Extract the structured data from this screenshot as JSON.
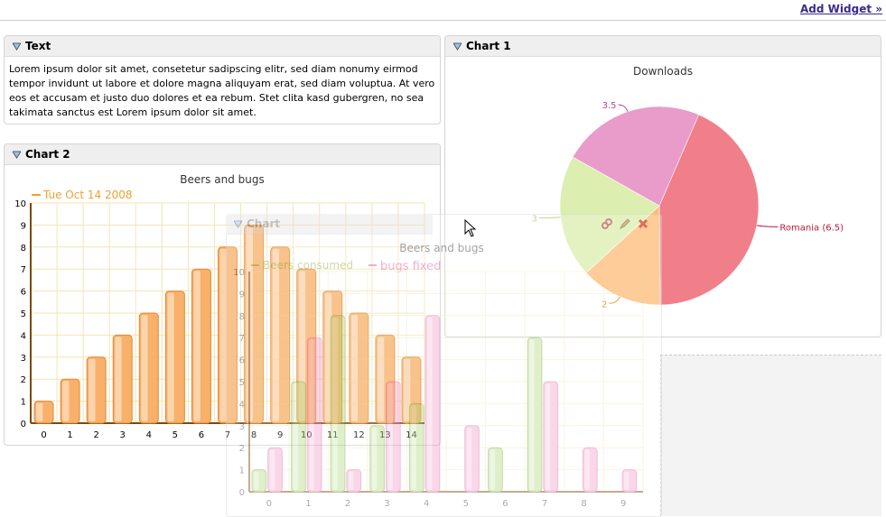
{
  "toolbar": {
    "add_widget": "Add Widget »"
  },
  "text_widget": {
    "title": "Text",
    "body": "Lorem ipsum dolor sit amet, consetetur sadipscing elitr, sed diam nonumy eirmod tempor invidunt ut labore et dolore magna aliquyam erat, sed diam voluptua. At vero eos et accusam et justo duo dolores et ea rebum. Stet clita kasd gubergren, no sea takimata sanctus est Lorem ipsum dolor sit amet."
  },
  "chart1_widget": {
    "title": "Chart 1"
  },
  "chart2_widget": {
    "title": "Chart 2"
  },
  "drag_widget": {
    "title": "Chart"
  },
  "colors": {
    "orange": "#f5a94e",
    "green": "#c8e09a",
    "pink": "#f4a7cf",
    "red": "#f07f8a"
  },
  "chart_data": [
    {
      "type": "pie",
      "title": "Downloads",
      "slices": [
        {
          "label": "Romania (6.5)",
          "value": 6.5,
          "color": "#f07f8a"
        },
        {
          "label": "2",
          "value": 2,
          "color": "#fdbd7a"
        },
        {
          "label": "3",
          "value": 3,
          "color": "#dceeb0"
        },
        {
          "label": "3.5",
          "value": 3.5,
          "color": "#e99cc9"
        }
      ]
    },
    {
      "type": "bar",
      "title": "Beers and bugs",
      "series": [
        {
          "name": "Tue Oct 14 2008",
          "values": [
            1,
            2,
            3,
            4,
            5,
            6,
            7,
            8,
            9,
            8,
            7,
            6,
            5,
            4,
            3
          ]
        }
      ],
      "categories": [
        "0",
        "1",
        "2",
        "3",
        "4",
        "5",
        "6",
        "7",
        "8",
        "9",
        "10",
        "11",
        "12",
        "13",
        "14"
      ],
      "ylim": [
        0,
        10
      ],
      "yticks": [
        "0",
        "1",
        "2",
        "3",
        "4",
        "5",
        "6",
        "7",
        "8",
        "9",
        "10"
      ]
    },
    {
      "type": "bar",
      "title": "Beers and bugs",
      "series": [
        {
          "name": "Beers consumed",
          "values": [
            1,
            5,
            8,
            3,
            4,
            0,
            2,
            7,
            0,
            0
          ]
        },
        {
          "name": "bugs fixed",
          "values": [
            2,
            7,
            1,
            5,
            8,
            3,
            0,
            5,
            2,
            1
          ]
        }
      ],
      "categories": [
        "0",
        "1",
        "2",
        "3",
        "4",
        "5",
        "6",
        "7",
        "8",
        "9"
      ],
      "ylim": [
        0,
        10
      ],
      "yticks": [
        "0",
        "1",
        "2",
        "3",
        "4",
        "5",
        "6",
        "7",
        "8",
        "9",
        "10"
      ]
    }
  ]
}
